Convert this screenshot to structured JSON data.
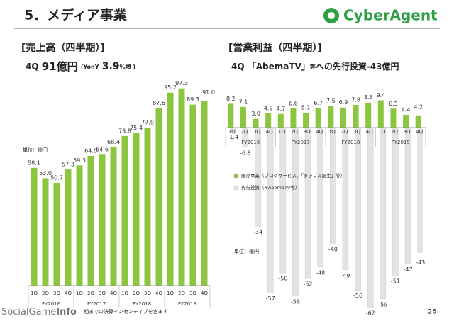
{
  "header": {
    "title": "5．メディア事業",
    "logo": "CyberAgent",
    "page": "26",
    "footnote": "期までの決算インセンティブを含まず",
    "watermark": [
      "Social",
      "Game",
      "Info"
    ]
  },
  "chart_data": [
    {
      "type": "bar",
      "title": "[売上高（四半期）]",
      "subtitle": [
        "4Q",
        "91億円",
        "(YonY",
        "3.9",
        "%増 )"
      ],
      "unit": "単位：億円",
      "categories": [
        "1Q",
        "2Q",
        "3Q",
        "4Q",
        "1Q",
        "2Q",
        "3Q",
        "4Q",
        "1Q",
        "2Q",
        "3Q",
        "4Q",
        "1Q",
        "2Q",
        "3Q",
        "4Q"
      ],
      "groups": [
        "FY2016",
        "FY2017",
        "FY2018",
        "FY2019"
      ],
      "series": [
        {
          "name": "売上高",
          "color": "#8cc63f",
          "values": [
            58.1,
            53.0,
            50.7,
            57.3,
            59.3,
            64.0,
            64.6,
            68.4,
            73.8,
            75.4,
            77.9,
            87.6,
            95.2,
            97.3,
            89.3,
            91.0
          ],
          "value_labels": [
            "58.1",
            "53.0",
            "50.7",
            "57.3",
            "59.3",
            "64.0",
            "64.6",
            "68.4",
            "73.8",
            "75.4",
            "77.9",
            "87.6",
            "95.2",
            "97.3",
            "89.3",
            "91.0"
          ]
        }
      ]
    },
    {
      "type": "bar",
      "title": "[営業利益（四半期）]",
      "subtitle": [
        "4Q 「AbemaTV」",
        "等",
        "への先行投資-43億円"
      ],
      "unit": "単位：億円",
      "categories": [
        "1Q",
        "2Q",
        "3Q",
        "4Q",
        "1Q",
        "2Q",
        "3Q",
        "4Q",
        "1Q",
        "2Q",
        "3Q",
        "4Q",
        "1Q",
        "2Q",
        "3Q",
        "4Q"
      ],
      "groups": [
        "FY2016",
        "FY2017",
        "FY2018",
        "FY2019"
      ],
      "series": [
        {
          "name": "既存事業（ブログサービス、「タップル誕生」等）",
          "color": "#8cc63f",
          "values": [
            8.2,
            7.1,
            3.0,
            4.9,
            4.7,
            6.6,
            5.1,
            6.7,
            7.5,
            6.9,
            7.8,
            8.6,
            9.4,
            6.5,
            4.4,
            4.2
          ],
          "value_labels": [
            "8.2",
            "7.1",
            "3.0",
            "4.9",
            "4.7",
            "6.6",
            "5.1",
            "6.7",
            "7.5",
            "6.9",
            "7.8",
            "8.6",
            "9.4",
            "6.5",
            "4.4",
            "4.2"
          ]
        },
        {
          "name": "先行投資（※AbemaTV等）",
          "color": "#e3e3e3",
          "values": [
            -1.4,
            -6.8,
            -34,
            -57,
            -50,
            -58,
            -52,
            -48,
            -40,
            -49,
            -56,
            -62,
            -59,
            -51,
            -47,
            -43
          ]
        }
      ]
    }
  ]
}
